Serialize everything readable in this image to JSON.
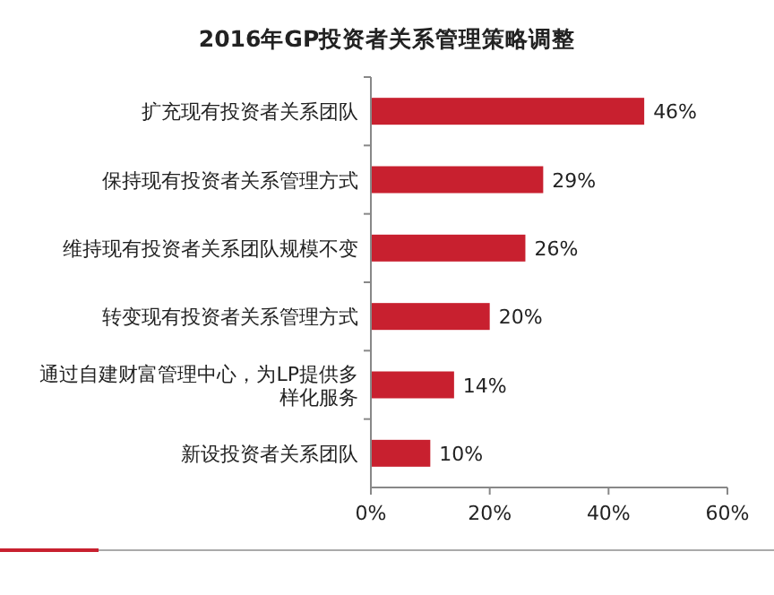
{
  "chart_data": {
    "type": "bar",
    "orientation": "horizontal",
    "title": "2016年GP投资者关系管理策略调整",
    "categories": [
      "扩充现有投资者关系团队",
      "保持现有投资者关系管理方式",
      "维持现有投资者关系团队规模不变",
      "转变现有投资者关系管理方式",
      "通过自建财富管理中心，为LP提供多样化服务",
      "新设投资者关系团队"
    ],
    "values": [
      46,
      29,
      26,
      20,
      14,
      10
    ],
    "value_labels": [
      "46%",
      "29%",
      "26%",
      "20%",
      "14%",
      "10%"
    ],
    "color": "#c8202f",
    "xlim": [
      0,
      60
    ],
    "xticks": [
      {
        "value": 0,
        "label": "0%"
      },
      {
        "value": 20,
        "label": "20%"
      },
      {
        "value": 40,
        "label": "40%"
      },
      {
        "value": 60,
        "label": "60%"
      }
    ],
    "grid": false
  }
}
